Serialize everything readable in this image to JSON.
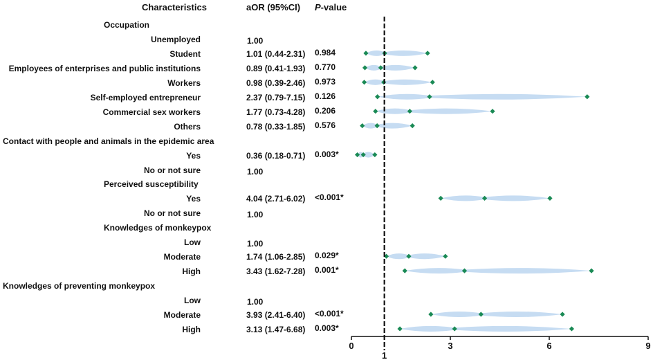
{
  "headers": {
    "characteristics": "Characteristics",
    "aor": "aOR (95%CI)",
    "p_letter": "P",
    "p_rest": "-value"
  },
  "chart_data": {
    "type": "forest",
    "xlim": [
      0,
      9
    ],
    "x_ticks": [
      0,
      3,
      6,
      9
    ],
    "reference_line": 1,
    "reference_label": "1",
    "colors": {
      "band": "#c6dcf2",
      "point": "#1a8a55",
      "reference": "#111111"
    },
    "rows": [
      {
        "label": "Occupation",
        "group": true,
        "aor_text": "",
        "p": ""
      },
      {
        "label": "Unemployed",
        "aor_text": "1.00",
        "p": ""
      },
      {
        "label": "Student",
        "aor_text": "1.01 (0.44-2.31)",
        "p": "0.984",
        "or": 1.01,
        "lo": 0.44,
        "hi": 2.31
      },
      {
        "label": "Employees of enterprises and public institutions",
        "aor_text": "0.89 (0.41-1.93)",
        "p": "0.770",
        "or": 0.89,
        "lo": 0.41,
        "hi": 1.93
      },
      {
        "label": "Workers",
        "aor_text": "0.98 (0.39-2.46)",
        "p": "0.973",
        "or": 0.98,
        "lo": 0.39,
        "hi": 2.46
      },
      {
        "label": "Self-employed entrepreneur",
        "aor_text": "2.37 (0.79-7.15)",
        "p": "0.126",
        "or": 2.37,
        "lo": 0.79,
        "hi": 7.15
      },
      {
        "label": "Commercial sex workers",
        "aor_text": "1.77 (0.73-4.28)",
        "p": "0.206",
        "or": 1.77,
        "lo": 0.73,
        "hi": 4.28
      },
      {
        "label": "Others",
        "aor_text": "0.78 (0.33-1.85)",
        "p": "0.576",
        "or": 0.78,
        "lo": 0.33,
        "hi": 1.85
      },
      {
        "label": "Contact with people and animals in the epidemic area",
        "group": true,
        "aor_text": "",
        "p": ""
      },
      {
        "label": "Yes",
        "aor_text": "0.36 (0.18-0.71)",
        "p": "0.003*",
        "or": 0.36,
        "lo": 0.18,
        "hi": 0.71
      },
      {
        "label": "No or not sure",
        "aor_text": "1.00",
        "p": ""
      },
      {
        "label": "Perceived susceptibility",
        "group": true,
        "aor_text": "",
        "p": ""
      },
      {
        "label": "Yes",
        "aor_text": "4.04 (2.71-6.02)",
        "p": "<0.001*",
        "or": 4.04,
        "lo": 2.71,
        "hi": 6.02
      },
      {
        "label": "No or not sure",
        "aor_text": "1.00",
        "p": ""
      },
      {
        "label": "Knowledges of monkeypox",
        "group": true,
        "aor_text": "",
        "p": ""
      },
      {
        "label": "Low",
        "aor_text": "1.00",
        "p": ""
      },
      {
        "label": "Moderate",
        "aor_text": "1.74 (1.06-2.85)",
        "p": "0.029*",
        "or": 1.74,
        "lo": 1.06,
        "hi": 2.85
      },
      {
        "label": "High",
        "aor_text": "3.43 (1.62-7.28)",
        "p": "0.001*",
        "or": 3.43,
        "lo": 1.62,
        "hi": 7.28
      },
      {
        "label": "Knowledges of preventing monkeypox",
        "group": true,
        "aor_text": "",
        "p": ""
      },
      {
        "label": "Low",
        "aor_text": "1.00",
        "p": ""
      },
      {
        "label": "Moderate",
        "aor_text": "3.93 (2.41-6.40)",
        "p": "<0.001*",
        "or": 3.93,
        "lo": 2.41,
        "hi": 6.4
      },
      {
        "label": "High",
        "aor_text": "3.13 (1.47-6.68)",
        "p": "0.003*",
        "or": 3.13,
        "lo": 1.47,
        "hi": 6.68
      }
    ]
  }
}
